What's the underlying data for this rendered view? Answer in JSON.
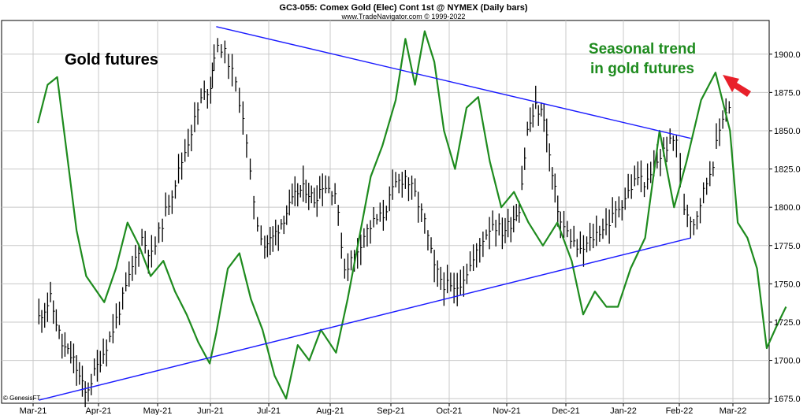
{
  "header": {
    "title": "GC3-055:  Comex Gold (Elec) Cont 1st @ NYMEX  (Daily bars)",
    "subtitle": "www.TradeNavigator.com © 1999-2022"
  },
  "credit": "© GenesisFT",
  "colors": {
    "price_bars": "#000000",
    "seasonal_line": "#1e8b1e",
    "trendlines": "#1a1aff",
    "arrow": "#e8202a",
    "grid": "#c8c8c8"
  },
  "chart_data": {
    "type": "line",
    "title": "GC3-055:  Comex Gold (Elec) Cont 1st @ NYMEX  (Daily bars)",
    "x_ticks": [
      "Mar-21",
      "Apr-21",
      "May-21",
      "Jun-21",
      "Jul-21",
      "Aug-21",
      "Sep-21",
      "Oct-21",
      "Nov-21",
      "Dec-21",
      "Jan-22",
      "Feb-22",
      "Mar-22"
    ],
    "y_ticks": [
      1675.0,
      1700.0,
      1725.0,
      1750.0,
      1775.0,
      1800.0,
      1825.0,
      1850.0,
      1875.0,
      1900.0
    ],
    "ylim": [
      1672,
      1922
    ],
    "y_axis_side": "right",
    "grid": true,
    "annotations": [
      {
        "text": "Gold futures",
        "color": "black"
      },
      {
        "text": "Seasonal trend",
        "color": "green"
      },
      {
        "text": "in gold futures",
        "color": "green"
      }
    ],
    "series": [
      {
        "kind": "ohlc-closes",
        "points": [
          [
            "Mar-21",
            1728
          ],
          [
            "Mar-21",
            1740
          ],
          [
            "Mar-21",
            1710
          ],
          [
            "Mar-21",
            1700
          ],
          [
            "Mar-21",
            1678
          ],
          [
            "Apr-21",
            1705
          ],
          [
            "Apr-21",
            1720
          ],
          [
            "Apr-21",
            1740
          ],
          [
            "Apr-21",
            1760
          ],
          [
            "Apr-21",
            1780
          ],
          [
            "Apr-21",
            1768
          ],
          [
            "May-21",
            1790
          ],
          [
            "May-21",
            1810
          ],
          [
            "May-21",
            1830
          ],
          [
            "May-21",
            1850
          ],
          [
            "May-21",
            1870
          ],
          [
            "May-21",
            1880
          ],
          [
            "Jun-21",
            1900
          ],
          [
            "Jun-21",
            1905
          ],
          [
            "Jun-21",
            1895
          ],
          [
            "Jun-21",
            1880
          ],
          [
            "Jun-21",
            1860
          ],
          [
            "Jun-21",
            1820
          ],
          [
            "Jun-21",
            1790
          ],
          [
            "Jun-21",
            1775
          ],
          [
            "Jul-21",
            1780
          ],
          [
            "Jul-21",
            1790
          ],
          [
            "Jul-21",
            1800
          ],
          [
            "Jul-21",
            1810
          ],
          [
            "Jul-21",
            1812
          ],
          [
            "Jul-21",
            1805
          ],
          [
            "Jul-21",
            1815
          ],
          [
            "Aug-21",
            1810
          ],
          [
            "Aug-21",
            1760
          ],
          [
            "Aug-21",
            1768
          ],
          [
            "Aug-21",
            1782
          ],
          [
            "Aug-21",
            1790
          ],
          [
            "Aug-21",
            1795
          ],
          [
            "Sep-21",
            1815
          ],
          [
            "Sep-21",
            1820
          ],
          [
            "Sep-21",
            1808
          ],
          [
            "Sep-21",
            1790
          ],
          [
            "Sep-21",
            1760
          ],
          [
            "Sep-21",
            1750
          ],
          [
            "Oct-21",
            1745
          ],
          [
            "Oct-21",
            1755
          ],
          [
            "Oct-21",
            1765
          ],
          [
            "Oct-21",
            1780
          ],
          [
            "Oct-21",
            1790
          ],
          [
            "Oct-21",
            1784
          ],
          [
            "Nov-21",
            1790
          ],
          [
            "Nov-21",
            1800
          ],
          [
            "Nov-21",
            1850
          ],
          [
            "Nov-21",
            1865
          ],
          [
            "Nov-21",
            1860
          ],
          [
            "Nov-21",
            1820
          ],
          [
            "Nov-21",
            1790
          ],
          [
            "Dec-21",
            1780
          ],
          [
            "Dec-21",
            1770
          ],
          [
            "Dec-21",
            1778
          ],
          [
            "Dec-21",
            1785
          ],
          [
            "Dec-21",
            1790
          ],
          [
            "Dec-21",
            1800
          ],
          [
            "Jan-22",
            1810
          ],
          [
            "Jan-22",
            1820
          ],
          [
            "Jan-22",
            1815
          ],
          [
            "Jan-22",
            1830
          ],
          [
            "Jan-22",
            1840
          ],
          [
            "Jan-22",
            1845
          ],
          [
            "Feb-22",
            1800
          ],
          [
            "Feb-22",
            1790
          ],
          [
            "Feb-22",
            1810
          ],
          [
            "Feb-22",
            1830
          ],
          [
            "Feb-22",
            1860
          ],
          [
            "Feb-22",
            1870
          ]
        ]
      },
      {
        "kind": "seasonal-line",
        "points": [
          [
            "Mar-21",
            1855
          ],
          [
            "Mar-21",
            1880
          ],
          [
            "Mar-21",
            1885
          ],
          [
            "Mar-21",
            1835
          ],
          [
            "Mar-21",
            1785
          ],
          [
            "Mar-21",
            1755
          ],
          [
            "Apr-21",
            1738
          ],
          [
            "Apr-21",
            1760
          ],
          [
            "Apr-21",
            1790
          ],
          [
            "Apr-21",
            1775
          ],
          [
            "Apr-21",
            1755
          ],
          [
            "May-21",
            1765
          ],
          [
            "May-21",
            1745
          ],
          [
            "May-21",
            1730
          ],
          [
            "May-21",
            1712
          ],
          [
            "May-21",
            1698
          ],
          [
            "Jun-21",
            1718
          ],
          [
            "Jun-21",
            1760
          ],
          [
            "Jun-21",
            1770
          ],
          [
            "Jun-21",
            1740
          ],
          [
            "Jun-21",
            1720
          ],
          [
            "Jul-21",
            1690
          ],
          [
            "Jul-21",
            1675
          ],
          [
            "Jul-21",
            1710
          ],
          [
            "Jul-21",
            1700
          ],
          [
            "Jul-21",
            1720
          ],
          [
            "Aug-21",
            1705
          ],
          [
            "Aug-21",
            1740
          ],
          [
            "Aug-21",
            1780
          ],
          [
            "Aug-21",
            1820
          ],
          [
            "Aug-21",
            1840
          ],
          [
            "Sep-21",
            1870
          ],
          [
            "Sep-21",
            1910
          ],
          [
            "Sep-21",
            1880
          ],
          [
            "Sep-21",
            1915
          ],
          [
            "Sep-21",
            1895
          ],
          [
            "Sep-21",
            1850
          ],
          [
            "Oct-21",
            1825
          ],
          [
            "Oct-21",
            1865
          ],
          [
            "Oct-21",
            1872
          ],
          [
            "Oct-21",
            1830
          ],
          [
            "Oct-21",
            1800
          ],
          [
            "Nov-21",
            1810
          ],
          [
            "Nov-21",
            1790
          ],
          [
            "Nov-21",
            1775
          ],
          [
            "Nov-21",
            1790
          ],
          [
            "Dec-21",
            1765
          ],
          [
            "Dec-21",
            1730
          ],
          [
            "Dec-21",
            1745
          ],
          [
            "Dec-21",
            1735
          ],
          [
            "Dec-21",
            1735
          ],
          [
            "Jan-22",
            1760
          ],
          [
            "Jan-22",
            1780
          ],
          [
            "Jan-22",
            1850
          ],
          [
            "Jan-22",
            1800
          ],
          [
            "Feb-22",
            1830
          ],
          [
            "Feb-22",
            1870
          ],
          [
            "Feb-22",
            1888
          ],
          [
            "Feb-22",
            1850
          ],
          [
            "Mar-22",
            1790
          ],
          [
            "Mar-22",
            1780
          ],
          [
            "Mar-22",
            1760
          ],
          [
            "Mar-22",
            1708
          ],
          [
            "Mar-22",
            1722
          ],
          [
            "Mar-22",
            1735
          ]
        ]
      },
      {
        "kind": "upper-trendline",
        "points": [
          [
            "Jun-21",
            1918
          ],
          [
            "Feb-22",
            1845
          ]
        ]
      },
      {
        "kind": "lower-trendline",
        "points": [
          [
            "Mar-21",
            1674
          ],
          [
            "Feb-22",
            1780
          ]
        ]
      }
    ]
  }
}
